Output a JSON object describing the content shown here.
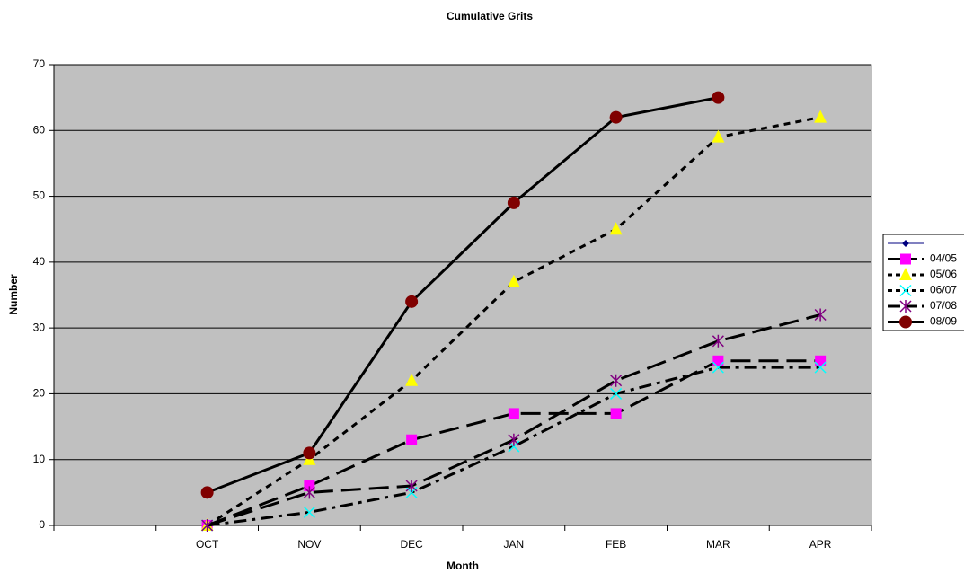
{
  "chart_data": {
    "type": "line",
    "title": "Cumulative Grits",
    "x_label": "Month",
    "y_label": "Number",
    "categories": [
      null,
      "OCT",
      "NOV",
      "DEC",
      "JAN",
      "FEB",
      "MAR",
      "APR"
    ],
    "ylim": [
      0,
      70
    ],
    "yticks": [
      0,
      10,
      20,
      30,
      40,
      50,
      60,
      70
    ],
    "grid": true,
    "legend": "right",
    "series": [
      {
        "name": null,
        "color": "#000080",
        "marker": "diamond",
        "dash": "solid-thin",
        "values": [
          null,
          null,
          null,
          null,
          null,
          null,
          null,
          null
        ]
      },
      {
        "name": "04/05",
        "color": "#ff00ff",
        "marker": "square",
        "dash": "long",
        "values": [
          null,
          0,
          6,
          13,
          17,
          17,
          25,
          25
        ]
      },
      {
        "name": "05/06",
        "color": "#ffff00",
        "marker": "triangle",
        "dash": "short",
        "values": [
          null,
          0,
          10,
          22,
          37,
          45,
          59,
          62
        ]
      },
      {
        "name": "06/07",
        "color": "#00ffff",
        "marker": "x",
        "dash": "dashdot",
        "values": [
          null,
          0,
          2,
          5,
          12,
          20,
          24,
          24
        ]
      },
      {
        "name": "07/08",
        "color": "#800080",
        "marker": "star",
        "dash": "long",
        "values": [
          null,
          0,
          5,
          6,
          13,
          22,
          28,
          32
        ]
      },
      {
        "name": "08/09",
        "color": "#800000",
        "marker": "circle",
        "dash": "solid",
        "values": [
          null,
          5,
          11,
          34,
          49,
          62,
          65,
          null
        ]
      }
    ]
  }
}
